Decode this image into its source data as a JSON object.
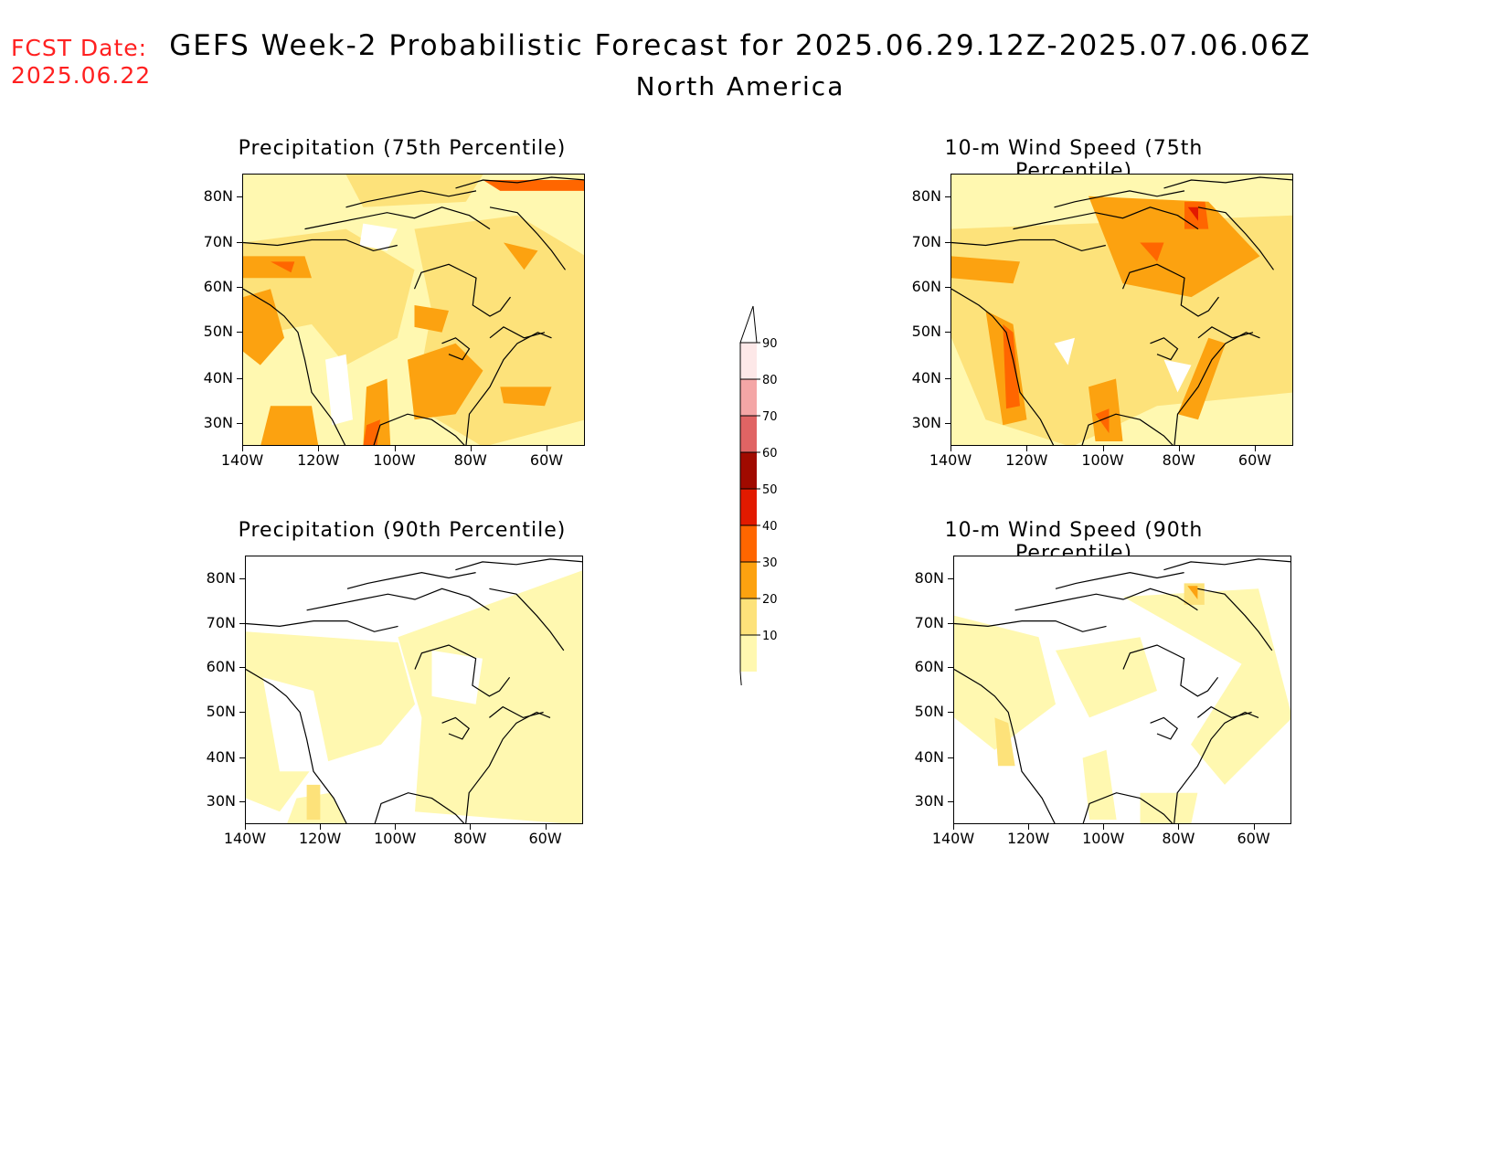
{
  "header": {
    "fcst_line1": "FCST Date:",
    "fcst_line2": "2025.06.22",
    "title": "GEFS Week-2 Probabilistic Forecast for 2025.06.29.12Z-2025.07.06.06Z",
    "subtitle": "North America"
  },
  "panels": [
    {
      "id": "precip75",
      "title": "Precipitation (75th Percentile)",
      "field": "precip_75"
    },
    {
      "id": "wind75",
      "title": "10-m Wind Speed (75th Percentile)",
      "field": "wind_75"
    },
    {
      "id": "precip90",
      "title": "Precipitation (90th Percentile)",
      "field": "precip_90"
    },
    {
      "id": "wind90",
      "title": "10-m Wind Speed (90th Percentile)",
      "field": "wind_90"
    }
  ],
  "axes": {
    "lat_labels": [
      "80N",
      "70N",
      "60N",
      "50N",
      "40N",
      "30N"
    ],
    "lon_labels": [
      "140W",
      "120W",
      "100W",
      "80W",
      "60W"
    ]
  },
  "colorbar": {
    "labels": [
      "90",
      "80",
      "70",
      "60",
      "50",
      "40",
      "30",
      "20",
      "10"
    ],
    "colors": {
      "10": "#fff8b0",
      "20": "#fde27a",
      "30": "#fca210",
      "40": "#ff6600",
      "50": "#e21a00",
      "60": "#a00a00",
      "70": "#e06464",
      "80": "#f4a6a6",
      "90": "#fde8e8"
    }
  }
}
